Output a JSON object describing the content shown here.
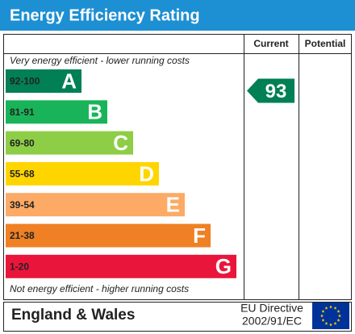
{
  "header": {
    "title": "Energy Efficiency Rating"
  },
  "columns": {
    "current": "Current",
    "potential": "Potential"
  },
  "top_note": "Very energy efficient - lower running costs",
  "bottom_note": "Not energy efficient - higher running costs",
  "bands": [
    {
      "range": "92-100",
      "letter": "A",
      "color": "#008054"
    },
    {
      "range": "81-91",
      "letter": "B",
      "color": "#19b459"
    },
    {
      "range": "69-80",
      "letter": "C",
      "color": "#8dce46"
    },
    {
      "range": "55-68",
      "letter": "D",
      "color": "#ffd500"
    },
    {
      "range": "39-54",
      "letter": "E",
      "color": "#fcaa65"
    },
    {
      "range": "21-38",
      "letter": "F",
      "color": "#ef8023"
    },
    {
      "range": "1-20",
      "letter": "G",
      "color": "#e9153b"
    }
  ],
  "current": {
    "value": 93
  },
  "footer": {
    "region": "England & Wales",
    "directive": [
      "EU Directive",
      "2002/91/EC"
    ]
  }
}
